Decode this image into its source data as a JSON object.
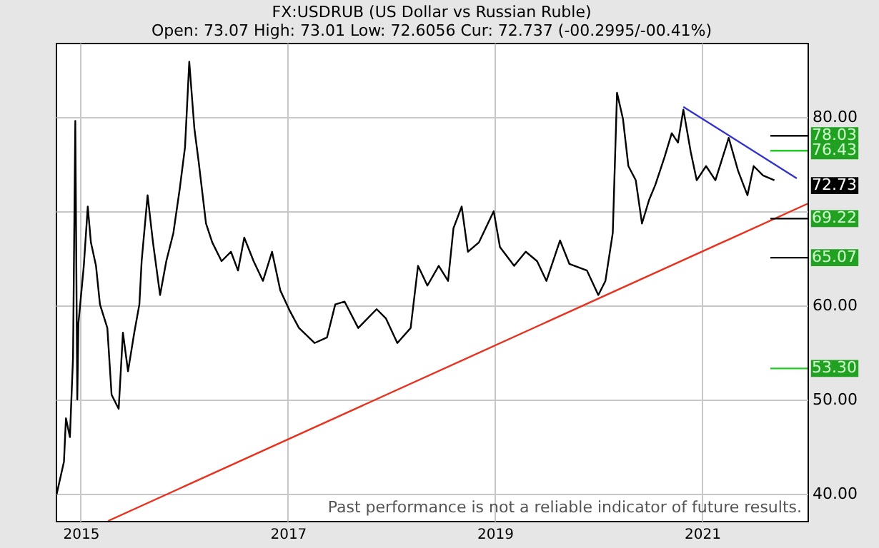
{
  "chart_data": {
    "type": "line",
    "title": "FX:USDRUB (US Dollar vs Russian Ruble)",
    "subtitle": "Open: 73.07 High: 73.01 Low: 72.6056 Cur: 72.737 (-00.2995/-00.41%)",
    "series": [
      {
        "color": "#000000",
        "x": [
          "2014-10-08",
          "2014-11-03",
          "2014-11-10",
          "2014-11-24",
          "2014-12-05",
          "2014-12-13",
          "2014-12-20",
          "2014-12-24",
          "2015-01-12",
          "2015-01-26",
          "2015-02-06",
          "2015-02-24",
          "2015-03-10",
          "2015-04-05",
          "2015-04-20",
          "2015-05-15",
          "2015-05-30",
          "2015-06-17",
          "2015-07-09",
          "2015-07-27",
          "2015-08-04",
          "2015-08-25",
          "2015-09-13",
          "2015-10-08",
          "2015-10-30",
          "2015-11-24",
          "2015-12-16",
          "2016-01-04",
          "2016-01-19",
          "2016-02-06",
          "2016-02-21",
          "2016-03-18",
          "2016-04-09",
          "2016-05-12",
          "2016-06-14",
          "2016-07-09",
          "2016-07-31",
          "2016-09-02",
          "2016-10-05",
          "2016-11-06",
          "2016-12-05",
          "2017-01-08",
          "2017-02-09",
          "2017-04-05",
          "2017-05-19",
          "2017-06-17",
          "2017-07-20",
          "2017-09-06",
          "2017-11-10",
          "2017-12-13",
          "2018-01-22",
          "2018-03-10",
          "2018-04-05",
          "2018-05-08",
          "2018-06-17",
          "2018-07-20",
          "2018-08-08",
          "2018-09-06",
          "2018-09-28",
          "2018-11-06",
          "2018-12-28",
          "2019-01-19",
          "2019-03-10",
          "2019-04-20",
          "2019-05-30",
          "2019-07-02",
          "2019-08-19",
          "2019-09-21",
          "2019-11-22",
          "2020-01-01",
          "2020-01-26",
          "2020-02-21",
          "2020-03-07",
          "2020-03-28",
          "2020-04-16",
          "2020-05-12",
          "2020-06-03",
          "2020-06-28",
          "2020-07-20",
          "2020-08-22",
          "2020-09-16",
          "2020-10-08",
          "2020-10-27",
          "2020-11-22",
          "2020-12-13",
          "2021-01-15",
          "2021-02-17",
          "2021-04-05",
          "2021-05-08",
          "2021-06-10",
          "2021-07-02",
          "2021-08-04",
          "2021-09-13"
        ],
        "values": [
          39.9,
          43.4,
          48.0,
          46.0,
          54.5,
          79.6,
          50.0,
          58.1,
          64.2,
          70.5,
          66.7,
          64.2,
          60.1,
          57.6,
          50.5,
          49.0,
          57.1,
          53.0,
          57.1,
          60.1,
          64.7,
          71.7,
          66.7,
          61.1,
          64.7,
          67.7,
          72.3,
          76.8,
          85.9,
          78.8,
          75.3,
          68.7,
          66.7,
          64.7,
          65.7,
          63.7,
          67.2,
          64.7,
          62.6,
          65.7,
          61.6,
          59.4,
          57.6,
          56.0,
          56.6,
          60.1,
          60.4,
          57.6,
          59.6,
          58.6,
          56.0,
          57.6,
          64.2,
          62.1,
          64.2,
          62.6,
          68.2,
          70.5,
          65.7,
          66.7,
          70.0,
          66.2,
          64.2,
          65.7,
          64.7,
          62.6,
          66.9,
          64.4,
          63.7,
          61.1,
          62.6,
          67.7,
          82.6,
          79.8,
          74.8,
          73.3,
          68.7,
          71.2,
          72.8,
          75.8,
          78.3,
          77.3,
          80.8,
          76.3,
          73.3,
          74.8,
          73.3,
          77.8,
          74.3,
          71.7,
          74.8,
          73.8,
          73.3
        ]
      },
      {
        "color": "#e8321e",
        "x": [
          "2015-04-08",
          "2022-01-08"
        ],
        "values": [
          37.1,
          70.8
        ]
      },
      {
        "color": "#3333cc",
        "x": [
          "2020-10-27",
          "2021-12-01"
        ],
        "values": [
          81.1,
          73.5
        ]
      }
    ],
    "xlim": [
      "2014-10-05",
      "2022-01-08"
    ],
    "ylim": [
      37.1,
      87.9
    ],
    "xticks": [
      {
        "value": "2015-01-01",
        "label": "2015"
      },
      {
        "value": "2017-01-01",
        "label": "2017"
      },
      {
        "value": "2019-01-01",
        "label": "2019"
      },
      {
        "value": "2021-01-01",
        "label": "2021"
      }
    ],
    "yticks": [
      {
        "value": 40,
        "label": "40.00"
      },
      {
        "value": 50,
        "label": "50.00"
      },
      {
        "value": 60,
        "label": "60.00"
      },
      {
        "value": 70,
        "label": null
      },
      {
        "value": 80,
        "label": "80.00"
      }
    ],
    "ref_lines": [
      {
        "axis": "y",
        "value": 78.03,
        "label": "78.03",
        "color": "#000000"
      },
      {
        "axis": "y",
        "value": 76.43,
        "label": "76.43",
        "color": "#22cc22"
      },
      {
        "axis": "y",
        "value": 69.22,
        "label": "69.22",
        "color": "#000000"
      },
      {
        "axis": "y",
        "value": 65.07,
        "label": "65.07",
        "color": "#000000"
      },
      {
        "axis": "y",
        "value": 53.3,
        "label": "53.30",
        "color": "#22cc22"
      }
    ],
    "annotations": [
      {
        "text": "72.73",
        "y": 72.73
      },
      "Past performance is not a reliable indicator of future results."
    ],
    "grid": true,
    "line_style": "solid"
  }
}
